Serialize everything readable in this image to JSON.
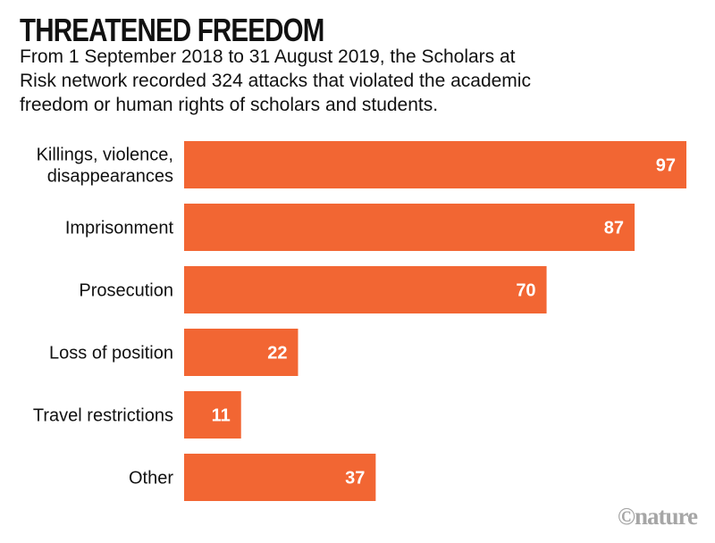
{
  "chart_data": {
    "type": "bar",
    "orientation": "horizontal",
    "title": "THREATENED FREEDOM",
    "subtitle_lines": [
      "From 1 September 2018 to 31 August 2019, the Scholars at",
      "Risk network recorded 324 attacks that violated the academic",
      "freedom or human rights of scholars and students."
    ],
    "categories": [
      [
        "Killings, violence,",
        "disappearances"
      ],
      [
        "Imprisonment"
      ],
      [
        "Prosecution"
      ],
      [
        "Loss of position"
      ],
      [
        "Travel restrictions"
      ],
      [
        "Other"
      ]
    ],
    "values": [
      97,
      87,
      70,
      22,
      11,
      37
    ],
    "xlim": [
      0,
      97
    ],
    "grid": false,
    "data_labels": true,
    "bar_color": "#F26633"
  },
  "credit": "©nature"
}
